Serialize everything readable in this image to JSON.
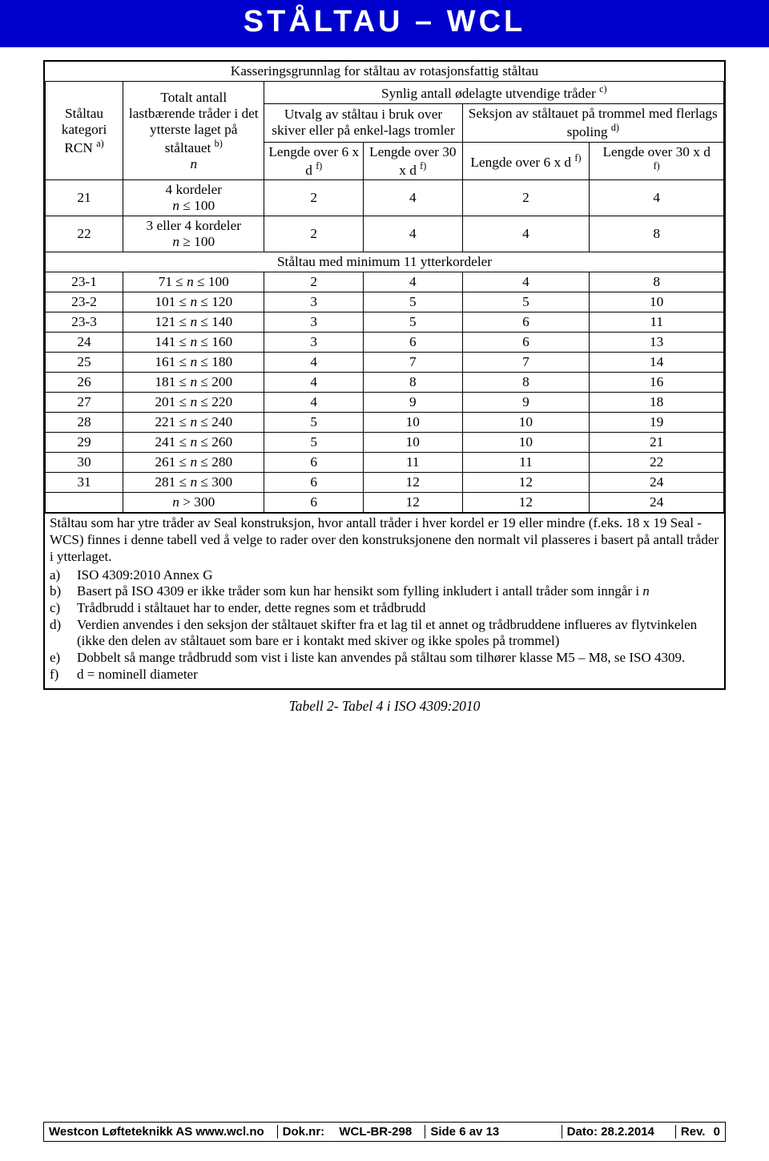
{
  "banner": {
    "title": "STÅLTAU – WCL"
  },
  "table_caption": "Kasseringsgrunnlag for ståltau av rotasjonsfattig ståltau",
  "headers": {
    "col1": "Ståltau kategori RCN ",
    "col1_sup": "a)",
    "col2_line1": "Totalt antall lastbærende tråder i det ytterste laget på ståltauet ",
    "col2_sup": "b)",
    "col2_n": "n",
    "super_right": "Synlig antall ødelagte utvendige tråder ",
    "super_right_sup": "c)",
    "group_a": "Utvalg av ståltau i bruk over skiver eller på enkel-lags tromler",
    "group_b_line": "Seksjon av ståltauet på trommel med flerlags spoling ",
    "group_b_sup": "d)",
    "len6": "Lengde over 6 x d ",
    "len30": "Lengde over 30 x d ",
    "len6b": "Lengde over 6 x d ",
    "len30b": "Lengde over 30 x d ",
    "f": "f)"
  },
  "rows_top": [
    {
      "rcn": "21",
      "n_html": "4 kordeler<br>n ≤ 100",
      "c1": "2",
      "c2": "4",
      "c3": "2",
      "c4": "4"
    },
    {
      "rcn": "22",
      "n_html": "3 eller 4 kordeler<br>n ≥ 100",
      "c1": "2",
      "c2": "4",
      "c3": "4",
      "c4": "8"
    }
  ],
  "mid_header": "Ståltau med minimum 11 ytterkordeler",
  "rows_main": [
    {
      "rcn": "23-1",
      "n": "71 ≤ n ≤ 100",
      "c1": "2",
      "c2": "4",
      "c3": "4",
      "c4": "8"
    },
    {
      "rcn": "23-2",
      "n": "101 ≤ n ≤ 120",
      "c1": "3",
      "c2": "5",
      "c3": "5",
      "c4": "10"
    },
    {
      "rcn": "23-3",
      "n": "121 ≤ n ≤ 140",
      "c1": "3",
      "c2": "5",
      "c3": "6",
      "c4": "11"
    },
    {
      "rcn": "24",
      "n": "141 ≤ n ≤ 160",
      "c1": "3",
      "c2": "6",
      "c3": "6",
      "c4": "13"
    },
    {
      "rcn": "25",
      "n": "161 ≤ n ≤ 180",
      "c1": "4",
      "c2": "7",
      "c3": "7",
      "c4": "14"
    },
    {
      "rcn": "26",
      "n": "181 ≤ n ≤ 200",
      "c1": "4",
      "c2": "8",
      "c3": "8",
      "c4": "16"
    },
    {
      "rcn": "27",
      "n": "201 ≤ n ≤ 220",
      "c1": "4",
      "c2": "9",
      "c3": "9",
      "c4": "18"
    },
    {
      "rcn": "28",
      "n": "221 ≤ n ≤ 240",
      "c1": "5",
      "c2": "10",
      "c3": "10",
      "c4": "19"
    },
    {
      "rcn": "29",
      "n": "241 ≤ n ≤ 260",
      "c1": "5",
      "c2": "10",
      "c3": "10",
      "c4": "21"
    },
    {
      "rcn": "30",
      "n": "261 ≤ n ≤ 280",
      "c1": "6",
      "c2": "11",
      "c3": "11",
      "c4": "22"
    },
    {
      "rcn": "31",
      "n": "281 ≤ n ≤ 300",
      "c1": "6",
      "c2": "12",
      "c3": "12",
      "c4": "24"
    },
    {
      "rcn": "",
      "n": "n > 300",
      "c1": "6",
      "c2": "12",
      "c3": "12",
      "c4": "24"
    }
  ],
  "notes": {
    "para": "Ståltau som har ytre tråder av Seal konstruksjon, hvor antall tråder i hver kordel er 19 eller mindre (f.eks. 18 x 19 Seal - WCS) finnes i denne tabell ved å velge to rader over den konstruksjonene den normalt vil plasseres i basert på antall tråder i ytterlaget.",
    "items": [
      {
        "l": "a)",
        "t": "ISO 4309:2010 Annex G"
      },
      {
        "l": "b)",
        "t": "Basert på ISO 4309 er ikke tråder som kun har hensikt som fylling inkludert i antall tråder som inngår i n"
      },
      {
        "l": "c)",
        "t": "Trådbrudd i ståltauet har to ender, dette regnes som et trådbrudd"
      },
      {
        "l": "d)",
        "t": "Verdien anvendes i den seksjon der ståltauet skifter fra et lag til et annet og trådbruddene influeres av flytvinkelen (ikke den delen av ståltauet som bare er i kontakt med skiver og ikke spoles på trommel)"
      },
      {
        "l": "e)",
        "t": "Dobbelt så mange trådbrudd som vist i liste kan anvendes på ståltau som tilhører klasse M5 – M8, se ISO 4309."
      },
      {
        "l": "f)",
        "t": "d = nominell diameter"
      }
    ]
  },
  "caption_below": "Tabell 2- Tabel 4 i ISO 4309:2010",
  "footer": {
    "company": "Westcon Løfteteknikk AS  www.wcl.no",
    "doknr_label": "Dok.nr:",
    "doknr": "WCL-BR-298",
    "side_label": "Side",
    "side": "6 av 13",
    "dato_label": "Dato:",
    "dato": "28.2.2014",
    "rev_label": "Rev.",
    "rev": "0"
  }
}
